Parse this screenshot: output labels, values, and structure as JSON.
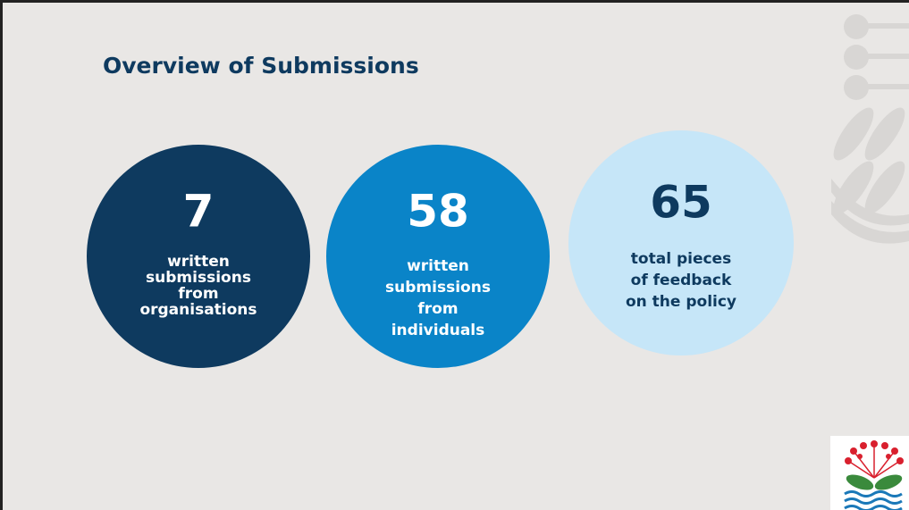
{
  "title": "Overview of Submissions",
  "stats": [
    {
      "number": "7",
      "label_lines": [
        "written",
        "submissions",
        "from",
        "organisations"
      ]
    },
    {
      "number": "58",
      "label_lines": [
        "written",
        "submissions",
        "from",
        "individuals"
      ]
    },
    {
      "number": "65",
      "label_lines": [
        "total pieces",
        "of feedback",
        "on the policy"
      ]
    }
  ]
}
